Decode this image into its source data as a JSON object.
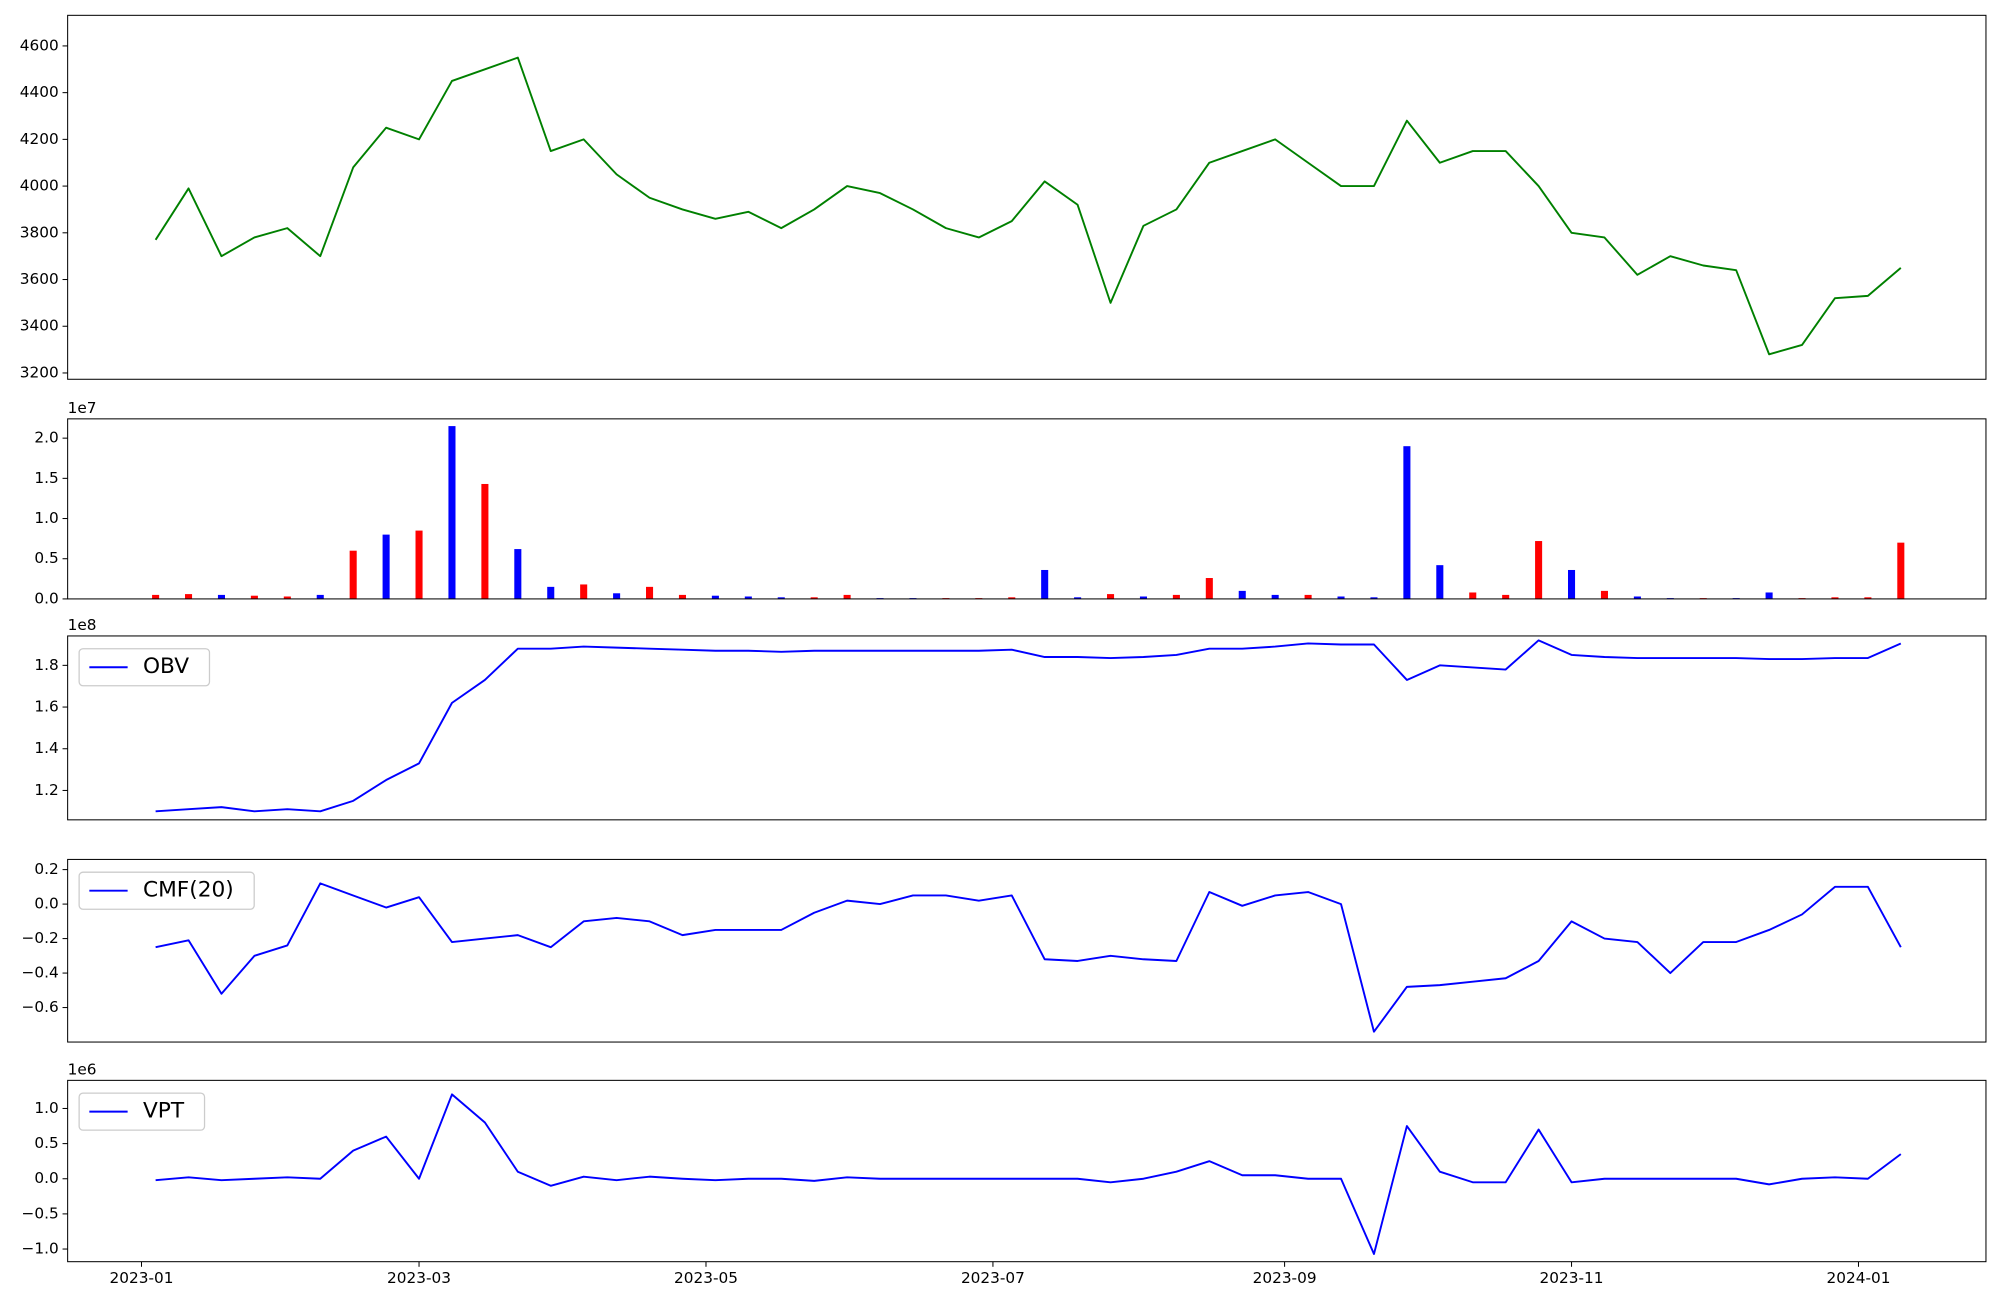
{
  "chart_data": [
    {
      "type": "line",
      "color": "green",
      "x": [
        19361,
        19368,
        19375,
        19382,
        19389,
        19396,
        19403,
        19410,
        19417,
        19424,
        19431,
        19438,
        19445,
        19452,
        19459,
        19466,
        19473,
        19480,
        19487,
        19494,
        19501,
        19508,
        19515,
        19522,
        19529,
        19536,
        19543,
        19550,
        19557,
        19564,
        19571,
        19578,
        19585,
        19592,
        19599,
        19606,
        19613,
        19620,
        19627,
        19634,
        19641,
        19648,
        19655,
        19662,
        19669,
        19676,
        19683,
        19690,
        19697,
        19704,
        19711,
        19718,
        19725,
        19732
      ],
      "values": [
        3770,
        3990,
        3700,
        3780,
        3820,
        3700,
        4080,
        4250,
        4200,
        4450,
        4500,
        4550,
        4150,
        4200,
        4050,
        3950,
        3900,
        3860,
        3890,
        3820,
        3900,
        4000,
        3970,
        3900,
        3820,
        3780,
        3850,
        4020,
        3920,
        3500,
        3830,
        3900,
        4100,
        4150,
        4200,
        4100,
        4000,
        4000,
        4280,
        4100,
        4150,
        4150,
        4000,
        3800,
        3780,
        3620,
        3700,
        3660,
        3640,
        3280,
        3320,
        3520,
        3530,
        3650
      ],
      "xlim": [
        19342.3,
        19750.1
      ],
      "ylim": [
        3173,
        4731
      ],
      "yticks": [
        3200,
        3400,
        3600,
        3800,
        4000,
        4200,
        4400,
        4600
      ]
    },
    {
      "type": "bar",
      "offset_label": "1e7",
      "x": [
        19361,
        19368,
        19375,
        19382,
        19389,
        19396,
        19403,
        19410,
        19417,
        19424,
        19431,
        19438,
        19445,
        19452,
        19459,
        19466,
        19473,
        19480,
        19487,
        19494,
        19501,
        19508,
        19515,
        19522,
        19529,
        19536,
        19543,
        19550,
        19557,
        19564,
        19571,
        19578,
        19585,
        19592,
        19599,
        19606,
        19613,
        19620,
        19627,
        19634,
        19641,
        19648,
        19655,
        19662,
        19669,
        19676,
        19683,
        19690,
        19697,
        19704,
        19711,
        19718,
        19725,
        19732
      ],
      "values": [
        0.05,
        0.06,
        0.05,
        0.04,
        0.03,
        0.05,
        0.6,
        0.8,
        0.85,
        2.15,
        1.43,
        0.62,
        0.15,
        0.18,
        0.07,
        0.15,
        0.05,
        0.04,
        0.03,
        0.02,
        0.02,
        0.05,
        0.01,
        0.01,
        0.01,
        0.01,
        0.02,
        0.36,
        0.02,
        0.06,
        0.03,
        0.05,
        0.26,
        0.1,
        0.05,
        0.05,
        0.03,
        0.02,
        1.9,
        0.42,
        0.08,
        0.05,
        0.72,
        0.36,
        0.1,
        0.03,
        0.01,
        0.01,
        0.01,
        0.08,
        0.01,
        0.02,
        0.02,
        0.7
      ],
      "colors": [
        "red",
        "red",
        "blue",
        "red",
        "red",
        "blue",
        "red",
        "blue",
        "red",
        "blue",
        "red",
        "blue",
        "blue",
        "red",
        "blue",
        "red",
        "red",
        "blue",
        "blue",
        "blue",
        "red",
        "red",
        "blue",
        "blue",
        "red",
        "red",
        "red",
        "blue",
        "blue",
        "red",
        "blue",
        "red",
        "red",
        "blue",
        "blue",
        "red",
        "blue",
        "blue",
        "blue",
        "blue",
        "red",
        "red",
        "red",
        "blue",
        "red",
        "blue",
        "blue",
        "red",
        "blue",
        "blue",
        "red",
        "red",
        "red",
        "red"
      ],
      "xlim": [
        19342.3,
        19750.1
      ],
      "ylim": [
        0,
        2.24
      ],
      "yticks": [
        {
          "value": 0,
          "label": "0.0"
        },
        0.5,
        {
          "value": 1,
          "label": "1.0"
        },
        1.5,
        {
          "value": 2,
          "label": "2.0"
        }
      ]
    },
    {
      "type": "line",
      "offset_label": "1e8",
      "legend": "upper left",
      "x": [
        19361,
        19368,
        19375,
        19382,
        19389,
        19396,
        19403,
        19410,
        19417,
        19424,
        19431,
        19438,
        19445,
        19452,
        19459,
        19466,
        19473,
        19480,
        19487,
        19494,
        19501,
        19508,
        19515,
        19522,
        19529,
        19536,
        19543,
        19550,
        19557,
        19564,
        19571,
        19578,
        19585,
        19592,
        19599,
        19606,
        19613,
        19620,
        19627,
        19634,
        19641,
        19648,
        19655,
        19662,
        19669,
        19676,
        19683,
        19690,
        19697,
        19704,
        19711,
        19718,
        19725,
        19732
      ],
      "series": [
        {
          "name": "OBV",
          "color": "blue",
          "values": [
            1.1,
            1.11,
            1.12,
            1.1,
            1.11,
            1.1,
            1.15,
            1.25,
            1.33,
            1.62,
            1.73,
            1.88,
            1.88,
            1.89,
            1.885,
            1.88,
            1.875,
            1.87,
            1.87,
            1.865,
            1.87,
            1.87,
            1.87,
            1.87,
            1.87,
            1.87,
            1.875,
            1.84,
            1.84,
            1.835,
            1.84,
            1.85,
            1.88,
            1.88,
            1.89,
            1.905,
            1.9,
            1.9,
            1.73,
            1.8,
            1.79,
            1.78,
            1.92,
            1.85,
            1.84,
            1.835,
            1.835,
            1.835,
            1.835,
            1.83,
            1.83,
            1.835,
            1.835,
            1.905
          ]
        }
      ],
      "xlim": [
        19342.3,
        19750.1
      ],
      "ylim": [
        1.059,
        1.941
      ],
      "yticks": [
        1.2,
        1.4,
        1.6,
        1.8
      ]
    },
    {
      "type": "line",
      "legend": "upper left",
      "x": [
        19361,
        19368,
        19375,
        19382,
        19389,
        19396,
        19403,
        19410,
        19417,
        19424,
        19431,
        19438,
        19445,
        19452,
        19459,
        19466,
        19473,
        19480,
        19487,
        19494,
        19501,
        19508,
        19515,
        19522,
        19529,
        19536,
        19543,
        19550,
        19557,
        19564,
        19571,
        19578,
        19585,
        19592,
        19599,
        19606,
        19613,
        19620,
        19627,
        19634,
        19641,
        19648,
        19655,
        19662,
        19669,
        19676,
        19683,
        19690,
        19697,
        19704,
        19711,
        19718,
        19725,
        19732
      ],
      "series": [
        {
          "name": "CMF(20)",
          "color": "blue",
          "values": [
            -0.25,
            -0.21,
            -0.52,
            -0.3,
            -0.24,
            0.12,
            0.05,
            -0.02,
            0.04,
            -0.22,
            -0.2,
            -0.18,
            -0.25,
            -0.1,
            -0.08,
            -0.1,
            -0.18,
            -0.15,
            -0.15,
            -0.15,
            -0.05,
            0.02,
            0.0,
            0.05,
            0.05,
            0.02,
            0.05,
            -0.32,
            -0.33,
            -0.3,
            -0.32,
            -0.33,
            0.07,
            -0.01,
            0.05,
            0.07,
            0.0,
            -0.74,
            -0.48,
            -0.47,
            -0.45,
            -0.43,
            -0.33,
            -0.1,
            -0.2,
            -0.22,
            -0.4,
            -0.22,
            -0.22,
            -0.15,
            -0.06,
            0.1,
            0.1,
            -0.25
          ]
        }
      ],
      "xlim": [
        19342.3,
        19750.1
      ],
      "ylim": [
        -0.8,
        0.259
      ],
      "yticks": [
        {
          "value": -0.6,
          "label": "−0.6"
        },
        {
          "value": -0.4,
          "label": "−0.4"
        },
        {
          "value": -0.2,
          "label": "−0.2"
        },
        {
          "value": 0,
          "label": "0.0"
        },
        0.2
      ]
    },
    {
      "type": "line",
      "offset_label": "1e6",
      "legend": "upper left",
      "x": [
        19361,
        19368,
        19375,
        19382,
        19389,
        19396,
        19403,
        19410,
        19417,
        19424,
        19431,
        19438,
        19445,
        19452,
        19459,
        19466,
        19473,
        19480,
        19487,
        19494,
        19501,
        19508,
        19515,
        19522,
        19529,
        19536,
        19543,
        19550,
        19557,
        19564,
        19571,
        19578,
        19585,
        19592,
        19599,
        19606,
        19613,
        19620,
        19627,
        19634,
        19641,
        19648,
        19655,
        19662,
        19669,
        19676,
        19683,
        19690,
        19697,
        19704,
        19711,
        19718,
        19725,
        19732
      ],
      "series": [
        {
          "name": "VPT",
          "color": "blue",
          "values": [
            -0.02,
            0.02,
            -0.02,
            0.0,
            0.02,
            0.0,
            0.4,
            0.6,
            0.0,
            1.2,
            0.8,
            0.1,
            -0.1,
            0.03,
            -0.02,
            0.03,
            0.0,
            -0.02,
            0.0,
            0.0,
            -0.03,
            0.02,
            0.0,
            0.0,
            0.0,
            0.0,
            0.0,
            0.0,
            0.0,
            -0.05,
            0.0,
            0.1,
            0.25,
            0.05,
            0.05,
            0.0,
            0.0,
            -1.07,
            0.75,
            0.1,
            -0.05,
            -0.05,
            0.7,
            -0.05,
            0.0,
            0.0,
            0.0,
            0.0,
            0.0,
            -0.08,
            0.0,
            0.02,
            0.0,
            0.35
          ]
        }
      ],
      "xlim": [
        19342.3,
        19750.1
      ],
      "ylim": [
        -1.18,
        1.4
      ],
      "yticks": [
        {
          "value": -1,
          "label": "−1.0"
        },
        {
          "value": -0.5,
          "label": "−0.5"
        },
        {
          "value": 0,
          "label": "0.0"
        },
        0.5,
        {
          "value": 1,
          "label": "1.0"
        }
      ],
      "xticks": [
        {
          "value": 19358,
          "label": "2023-01"
        },
        {
          "value": 19417,
          "label": "2023-03"
        },
        {
          "value": 19478,
          "label": "2023-05"
        },
        {
          "value": 19539,
          "label": "2023-07"
        },
        {
          "value": 19601,
          "label": "2023-09"
        },
        {
          "value": 19662,
          "label": "2023-11"
        },
        {
          "value": 19723,
          "label": "2024-01"
        }
      ]
    }
  ]
}
